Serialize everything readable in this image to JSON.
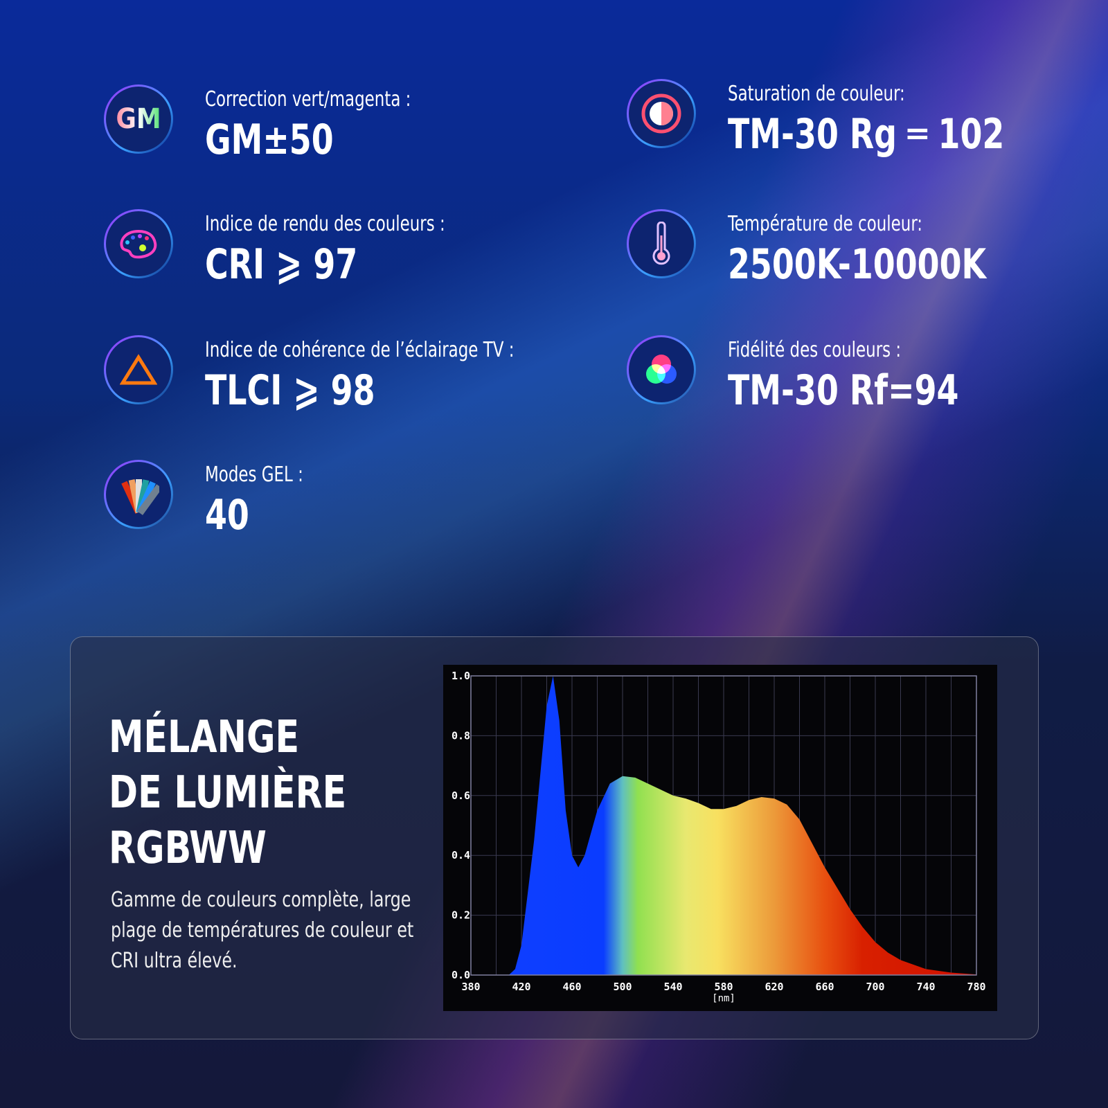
{
  "features": [
    {
      "icon": "gm-icon",
      "icon_text": "GM",
      "label": "Correction vert/magenta :",
      "value": "GM±50"
    },
    {
      "icon": "palette-icon",
      "label": "Indice de rendu des couleurs :",
      "value": "CRI ⩾ 97"
    },
    {
      "icon": "triangle-icon",
      "label": "Indice de cohérence de l’éclairage TV :",
      "value": "TLCI ⩾ 98"
    },
    {
      "icon": "gel-swatches-icon",
      "label": "Modes GEL :",
      "value": "40"
    },
    {
      "icon": "saturation-icon",
      "label": "Saturation de couleur:",
      "value": "TM-30 Rg ═ 102"
    },
    {
      "icon": "thermometer-icon",
      "label": "Température de couleur:",
      "value": "2500K-10000K"
    },
    {
      "icon": "rgb-circles-icon",
      "label": "Fidélité des couleurs :",
      "value": "TM-30 Rf=94"
    }
  ],
  "panel": {
    "title_lines": [
      "MÉLANGE",
      "DE LUMIÈRE",
      "RGBWW"
    ],
    "description": "Gamme de couleurs complète, large plage de températures de couleur et CRI ultra élevé."
  },
  "chart_data": {
    "type": "area",
    "title": "",
    "xlabel": "[nm]",
    "ylabel": "",
    "xlim": [
      380,
      780
    ],
    "ylim": [
      0,
      1.0
    ],
    "grid": true,
    "xticks": [
      "380",
      "420",
      "460",
      "500",
      "540",
      "580",
      "620",
      "660",
      "700",
      "740",
      "780"
    ],
    "yticks": [
      "0.0",
      "0.2",
      "0.4",
      "0.6",
      "0.8",
      "1.0"
    ],
    "x": [
      380,
      410,
      415,
      420,
      430,
      440,
      445,
      450,
      455,
      460,
      465,
      470,
      480,
      490,
      500,
      510,
      520,
      530,
      540,
      550,
      560,
      570,
      580,
      590,
      600,
      610,
      620,
      630,
      640,
      650,
      660,
      670,
      680,
      690,
      700,
      710,
      720,
      730,
      740,
      760,
      780
    ],
    "y": [
      0,
      0,
      0.02,
      0.1,
      0.45,
      0.9,
      1.0,
      0.85,
      0.55,
      0.4,
      0.36,
      0.4,
      0.55,
      0.64,
      0.665,
      0.66,
      0.64,
      0.62,
      0.6,
      0.59,
      0.575,
      0.555,
      0.555,
      0.565,
      0.585,
      0.595,
      0.59,
      0.57,
      0.52,
      0.44,
      0.36,
      0.29,
      0.22,
      0.16,
      0.11,
      0.075,
      0.05,
      0.035,
      0.02,
      0.008,
      0.002
    ]
  }
}
